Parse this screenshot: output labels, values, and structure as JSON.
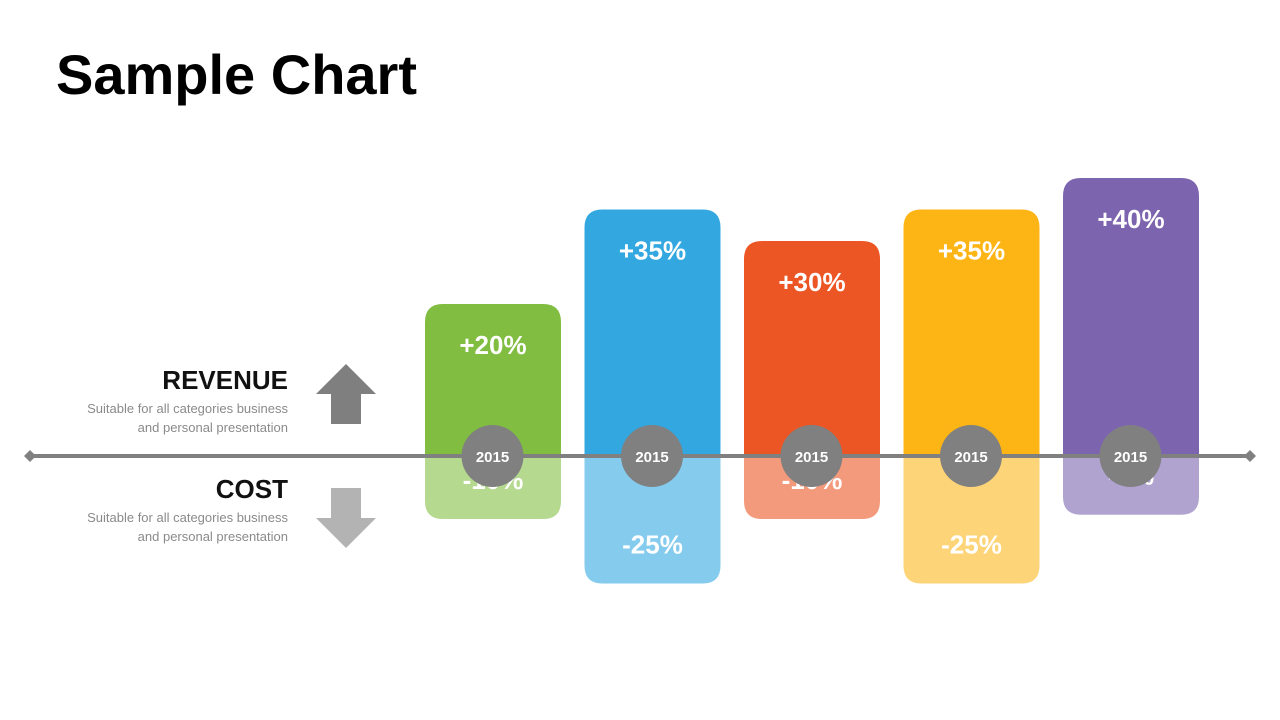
{
  "page": {
    "title": "Sample Chart"
  },
  "legend": {
    "revenue": {
      "label": "REVENUE",
      "desc_line1": "Suitable for all categories business",
      "desc_line2": "and personal presentation",
      "icon": "arrow-up-icon",
      "color": "#7f7f7f"
    },
    "cost": {
      "label": "COST",
      "desc_line1": "Suitable for all categories business",
      "desc_line2": "and personal presentation",
      "icon": "arrow-down-icon",
      "color": "#b3b3b3"
    }
  },
  "chart_data": {
    "type": "bar",
    "categories": [
      "2015",
      "2015",
      "2015",
      "2015",
      "2015"
    ],
    "series": [
      {
        "name": "REVENUE",
        "values": [
          20,
          35,
          30,
          35,
          40
        ],
        "labels": [
          "+20%",
          "+35%",
          "+30%",
          "+35%",
          "+40%"
        ]
      },
      {
        "name": "COST",
        "values": [
          -10,
          -25,
          -10,
          -25,
          -9
        ],
        "labels": [
          "-10%",
          "-25%",
          "-10%",
          "-25%",
          "-9%"
        ]
      }
    ],
    "colors": [
      "#80bd41",
      "#33a8e0",
      "#ec5524",
      "#fdb515",
      "#7c65ae"
    ],
    "cost_colors": [
      "#b4d98f",
      "#85cbee",
      "#f49a7c",
      "#fed478",
      "#b0a3d0"
    ],
    "axis_color": "#808080",
    "marker_color": "#808080",
    "ylim": [
      -40,
      45
    ],
    "legend": "left",
    "grid": false
  }
}
